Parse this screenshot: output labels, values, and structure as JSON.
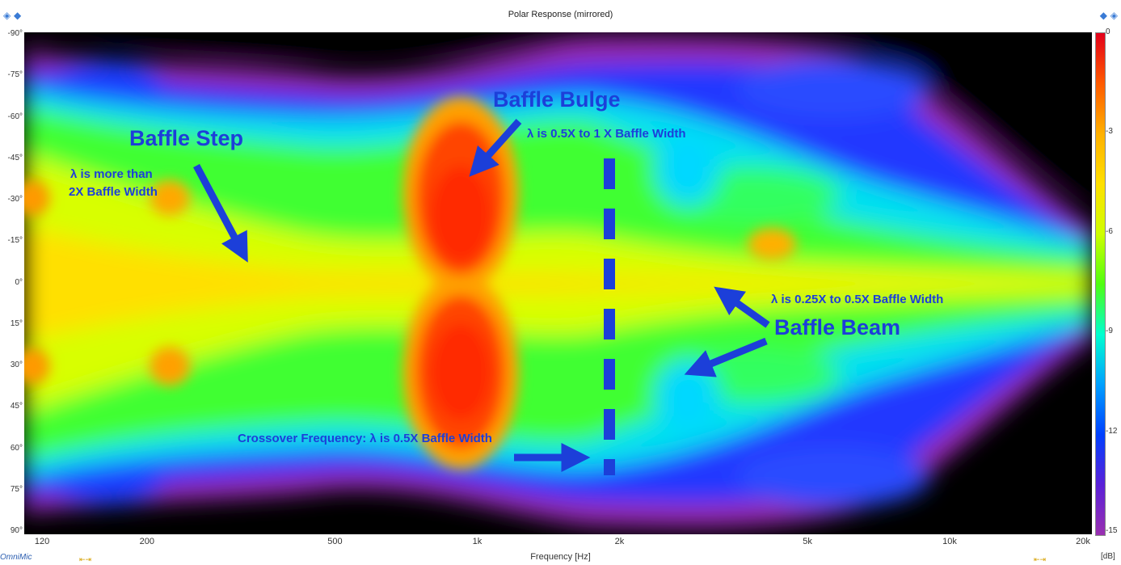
{
  "window": {
    "title": "Polar Response (mirrored)",
    "brand": "OmniMic",
    "corner_icon": "diamond-move-icon"
  },
  "chart_data": {
    "type": "heatmap",
    "title": "Polar Response (mirrored)",
    "xlabel": "Frequency [Hz]",
    "ylabel": "",
    "xscale": "log",
    "xlim": [
      110,
      20000
    ],
    "ylim": [
      -90,
      90
    ],
    "x_ticks": [
      "120",
      "200",
      "500",
      "1k",
      "2k",
      "5k",
      "10k",
      "20k"
    ],
    "y_ticks": [
      "-90°",
      "-75°",
      "-60°",
      "-45°",
      "-30°",
      "-15°",
      "0°",
      "15°",
      "30°",
      "45°",
      "60°",
      "75°",
      "90°"
    ],
    "colorbar": {
      "unit": "[dB]",
      "ticks": [
        "0",
        "-3",
        "-6",
        "-9",
        "-12",
        "-15"
      ],
      "range": [
        -15,
        0
      ]
    },
    "grid": false,
    "legend": "none",
    "colors": {
      "annotation": "#1c3fd9",
      "background": "#000000"
    }
  },
  "annotations": {
    "baffle_bulge": "Baffle Bulge",
    "bulge_note": "λ is 0.5X to 1 X Baffle Width",
    "baffle_step": "Baffle Step",
    "step_note_1": "λ is more than",
    "step_note_2": "2X Baffle Width",
    "beam_note": "λ is 0.25X to 0.5X Baffle Width",
    "baffle_beam": "Baffle Beam",
    "crossover": "Crossover Frequency: λ is 0.5X Baffle Width"
  }
}
